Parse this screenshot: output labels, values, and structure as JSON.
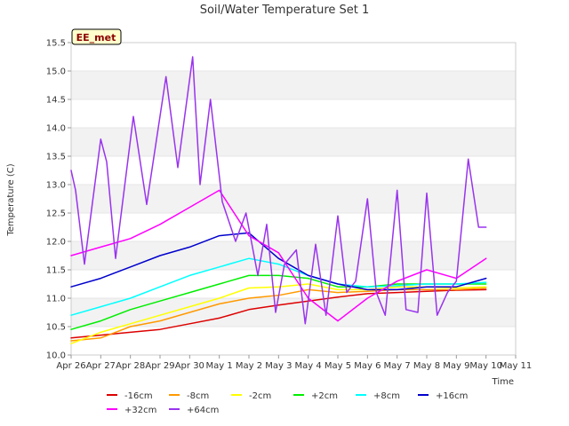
{
  "chart_data": {
    "type": "line",
    "title": "Soil/Water Temperature Set 1",
    "xlabel": "Time",
    "ylabel": "Temperature (C)",
    "badge": "EE_met",
    "ylim": [
      10.0,
      15.5
    ],
    "xlim": [
      0,
      15
    ],
    "yticks": [
      10.0,
      10.5,
      11.0,
      11.5,
      12.0,
      12.5,
      13.0,
      13.5,
      14.0,
      14.5,
      15.0,
      15.5
    ],
    "ytick_labels": [
      "10.0",
      "10.5",
      "11.0",
      "11.5",
      "12.0",
      "12.5",
      "13.0",
      "13.5",
      "14.0",
      "14.5",
      "15.0",
      "15.5"
    ],
    "xticks": [
      0,
      1,
      2,
      3,
      4,
      5,
      6,
      7,
      8,
      9,
      10,
      11,
      12,
      13,
      14,
      15
    ],
    "xtick_labels": [
      "Apr 26",
      "Apr 27",
      "Apr 28",
      "Apr 29",
      "Apr 30",
      "May 1",
      "May 2",
      "May 3",
      "May 4",
      "May 5",
      "May 6",
      "May 7",
      "May 8",
      "May 9",
      "May 10",
      "May 11"
    ],
    "grid": "horizontal bands",
    "legend_position": "bottom",
    "series": [
      {
        "name": "-16cm",
        "color": "#dd0000",
        "x": [
          0,
          1,
          2,
          3,
          4,
          5,
          6,
          7,
          8,
          9,
          10,
          11,
          12,
          13,
          14
        ],
        "y": [
          10.3,
          10.35,
          10.4,
          10.45,
          10.55,
          10.65,
          10.8,
          10.88,
          10.95,
          11.02,
          11.08,
          11.1,
          11.12,
          11.14,
          11.15
        ]
      },
      {
        "name": "-8cm",
        "color": "#ff9900",
        "x": [
          0,
          1,
          2,
          3,
          4,
          5,
          6,
          7,
          8,
          9,
          10,
          11,
          12,
          13,
          14
        ],
        "y": [
          10.25,
          10.3,
          10.5,
          10.6,
          10.75,
          10.9,
          11.0,
          11.05,
          11.15,
          11.1,
          11.12,
          11.15,
          11.15,
          11.15,
          11.18
        ]
      },
      {
        "name": "-2cm",
        "color": "#ffff00",
        "x": [
          0,
          1,
          2,
          3,
          4,
          5,
          6,
          7,
          8,
          9,
          10,
          11,
          12,
          13,
          14
        ],
        "y": [
          10.2,
          10.4,
          10.55,
          10.7,
          10.85,
          11.0,
          11.18,
          11.2,
          11.25,
          11.15,
          11.15,
          11.2,
          11.2,
          11.18,
          11.2
        ]
      },
      {
        "name": "+2cm",
        "color": "#00ee00",
        "x": [
          0,
          1,
          2,
          3,
          4,
          5,
          6,
          7,
          8,
          9,
          10,
          11,
          12,
          13,
          14
        ],
        "y": [
          10.45,
          10.6,
          10.8,
          10.95,
          11.1,
          11.25,
          11.4,
          11.4,
          11.35,
          11.2,
          11.2,
          11.25,
          11.25,
          11.25,
          11.25
        ]
      },
      {
        "name": "+8cm",
        "color": "#00ffff",
        "x": [
          0,
          1,
          2,
          3,
          4,
          5,
          6,
          7,
          8,
          9,
          10,
          11,
          12,
          13,
          14
        ],
        "y": [
          10.7,
          10.85,
          11.0,
          11.2,
          11.4,
          11.55,
          11.7,
          11.6,
          11.4,
          11.25,
          11.2,
          11.22,
          11.25,
          11.25,
          11.28
        ]
      },
      {
        "name": "+16cm",
        "color": "#0000cc",
        "x": [
          0,
          1,
          2,
          3,
          4,
          5,
          6,
          7,
          8,
          9,
          10,
          11,
          12,
          13,
          14
        ],
        "y": [
          11.2,
          11.35,
          11.55,
          11.75,
          11.9,
          12.1,
          12.15,
          11.7,
          11.4,
          11.25,
          11.15,
          11.15,
          11.2,
          11.2,
          11.35
        ]
      },
      {
        "name": "+32cm",
        "color": "#ff00ff",
        "x": [
          0,
          1,
          2,
          3,
          4,
          5,
          6,
          7,
          8,
          9,
          10,
          11,
          12,
          13,
          14
        ],
        "y": [
          11.75,
          11.9,
          12.05,
          12.3,
          12.6,
          12.9,
          12.1,
          11.8,
          11.0,
          10.6,
          11.0,
          11.3,
          11.5,
          11.35,
          11.7
        ]
      },
      {
        "name": "+64cm",
        "color": "#9933ee",
        "x": [
          0,
          0.15,
          0.45,
          1.0,
          1.2,
          1.5,
          2.1,
          2.55,
          3.2,
          3.6,
          4.1,
          4.35,
          4.7,
          5.1,
          5.55,
          5.9,
          6.3,
          6.6,
          6.9,
          7.2,
          7.6,
          7.9,
          8.25,
          8.6,
          9.0,
          9.3,
          9.6,
          10.0,
          10.3,
          10.6,
          11.0,
          11.3,
          11.7,
          12.0,
          12.35,
          12.7,
          13.0,
          13.4,
          13.75,
          14.0
        ],
        "y": [
          13.25,
          12.9,
          11.6,
          13.8,
          13.4,
          11.7,
          14.2,
          12.65,
          14.9,
          13.3,
          15.25,
          13.0,
          14.5,
          12.7,
          12.0,
          12.5,
          11.4,
          12.3,
          10.75,
          11.6,
          11.85,
          10.55,
          11.95,
          10.7,
          12.45,
          11.1,
          11.3,
          12.75,
          11.1,
          10.7,
          12.9,
          10.8,
          10.75,
          12.85,
          10.7,
          11.1,
          11.3,
          13.45,
          12.25,
          12.25
        ]
      }
    ]
  }
}
